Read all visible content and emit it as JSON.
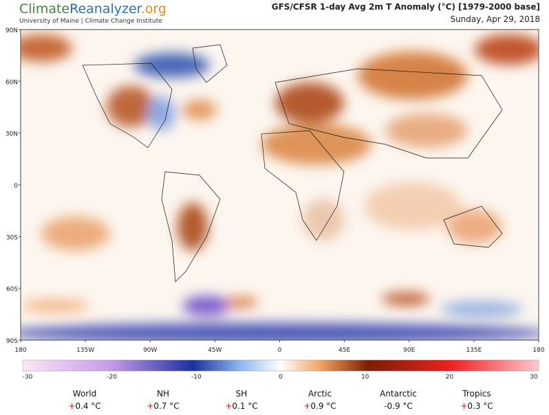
{
  "header": {
    "logo_climate": "Climate",
    "logo_reanalyzer": "Reanalyzer",
    "logo_org": ".org",
    "institution": "University of Maine | Climate Change Institute",
    "title": "GFS/CFSR 1-day Avg 2m T Anomaly (°C) [1979-2000 base]",
    "date": "Sunday, Apr 29, 2018"
  },
  "map": {
    "lat_labels": [
      "90N",
      "60N",
      "30N",
      "0",
      "30S",
      "60S",
      "90S"
    ],
    "lon_labels": [
      "180",
      "135W",
      "90W",
      "45W",
      "0",
      "45E",
      "90E",
      "135E",
      "180"
    ]
  },
  "colorbar": {
    "tick_labels": [
      "-30",
      "-20",
      "-10",
      "0",
      "10",
      "20",
      "30"
    ]
  },
  "stats": [
    {
      "region": "World",
      "sign": "+",
      "value": "0.4 °C"
    },
    {
      "region": "NH",
      "sign": "+",
      "value": "0.7 °C"
    },
    {
      "region": "SH",
      "sign": "+",
      "value": "0.1 °C"
    },
    {
      "region": "Arctic",
      "sign": "+",
      "value": "0.9 °C"
    },
    {
      "region": "Antarctic",
      "sign": "-",
      "value": "0.9 °C"
    },
    {
      "region": "Tropics",
      "sign": "+",
      "value": "0.3 °C"
    }
  ]
}
